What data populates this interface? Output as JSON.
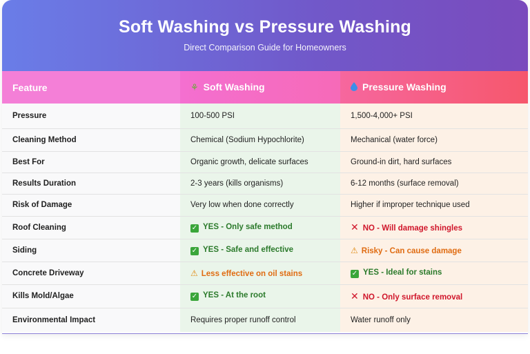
{
  "header": {
    "title": "Soft Washing vs Pressure Washing",
    "subtitle": "Direct Comparison Guide for Homeowners"
  },
  "table": {
    "columns": [
      {
        "label": "Feature",
        "icon": ""
      },
      {
        "label": "Soft Washing",
        "icon": "leaf-icon"
      },
      {
        "label": "Pressure Washing",
        "icon": "water-drop-icon"
      }
    ],
    "rows": [
      {
        "feature": "Pressure",
        "soft": "100-500 PSI",
        "soft_status": "plain",
        "pressure": "1,500-4,000+ PSI",
        "pressure_status": "plain"
      },
      {
        "feature": "Cleaning Method",
        "soft": "Chemical (Sodium Hypochlorite)",
        "soft_status": "plain",
        "pressure": "Mechanical (water force)",
        "pressure_status": "plain"
      },
      {
        "feature": "Best For",
        "soft": "Organic growth, delicate surfaces",
        "soft_status": "plain",
        "pressure": "Ground-in dirt, hard surfaces",
        "pressure_status": "plain"
      },
      {
        "feature": "Results Duration",
        "soft": "2-3 years (kills organisms)",
        "soft_status": "plain",
        "pressure": "6-12 months (surface removal)",
        "pressure_status": "plain"
      },
      {
        "feature": "Risk of Damage",
        "soft": "Very low when done correctly",
        "soft_status": "plain",
        "pressure": "Higher if improper technique used",
        "pressure_status": "plain"
      },
      {
        "feature": "Roof Cleaning",
        "soft": "YES - Only safe method",
        "soft_status": "yes",
        "pressure": "NO - Will damage shingles",
        "pressure_status": "no"
      },
      {
        "feature": "Siding",
        "soft": "YES - Safe and effective",
        "soft_status": "yes",
        "pressure": "Risky - Can cause damage",
        "pressure_status": "warn"
      },
      {
        "feature": "Concrete Driveway",
        "soft": "Less effective on oil stains",
        "soft_status": "warn",
        "pressure": "YES - Ideal for stains",
        "pressure_status": "yes"
      },
      {
        "feature": "Kills Mold/Algae",
        "soft": "YES - At the root",
        "soft_status": "yes",
        "pressure": "NO - Only surface removal",
        "pressure_status": "no"
      },
      {
        "feature": "Environmental Impact",
        "soft": "Requires proper runoff control",
        "soft_status": "plain",
        "pressure": "Water runoff only",
        "pressure_status": "plain"
      }
    ]
  },
  "colors": {
    "header_gradient_start": "#6a7de8",
    "header_gradient_end": "#7a4bbd",
    "yes": "#2b7a2b",
    "no": "#d0162b",
    "warn": "#e06c12",
    "soft_col_bg": "#eaf5ea",
    "pressure_col_bg": "#fdf1e6"
  }
}
